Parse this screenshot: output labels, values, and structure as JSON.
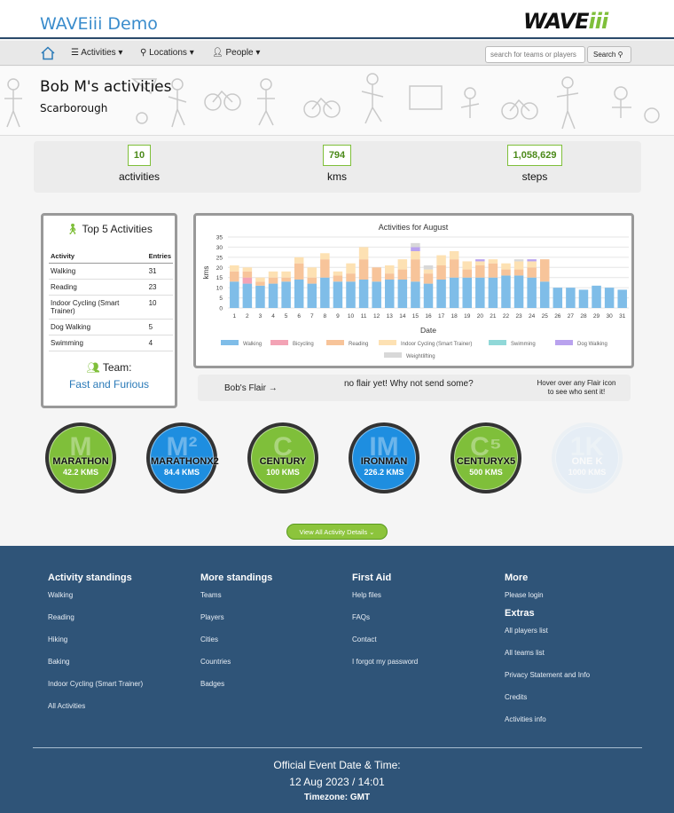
{
  "header": {
    "brand": "WAVEiii Demo",
    "logo_main": "WAVE",
    "logo_accent": "iii"
  },
  "nav": {
    "home_icon": "home-icon",
    "items": [
      {
        "icon": "list-icon",
        "label": "Activities"
      },
      {
        "icon": "map-marker-icon",
        "label": "Locations"
      },
      {
        "icon": "user-icon",
        "label": "People"
      }
    ],
    "search_placeholder": "search for teams or players",
    "search_button": "Search"
  },
  "profile": {
    "title": "Bob M's activities",
    "location": "Scarborough"
  },
  "stats": [
    {
      "value": "10",
      "label": "activities"
    },
    {
      "value": "794",
      "label": "kms"
    },
    {
      "value": "1,058,629",
      "label": "steps"
    }
  ],
  "top5": {
    "title": "Top 5 Activities",
    "col_activity": "Activity",
    "col_entries": "Entries",
    "rows": [
      {
        "activity": "Walking",
        "entries": "31"
      },
      {
        "activity": "Reading",
        "entries": "23"
      },
      {
        "activity": "Indoor Cycling (Smart Trainer)",
        "entries": "10"
      },
      {
        "activity": "Dog Walking",
        "entries": "5"
      },
      {
        "activity": "Swimming",
        "entries": "4"
      }
    ],
    "team_label": "Team:",
    "team_name": "Fast and Furious"
  },
  "chart_data": {
    "type": "bar",
    "stacked": true,
    "title": "Activities for August",
    "xlabel": "Date",
    "ylabel": "kms",
    "ylim": [
      0,
      35
    ],
    "yticks": [
      0,
      5,
      10,
      15,
      20,
      25,
      30,
      35
    ],
    "grid": true,
    "legend": "bottom",
    "categories": [
      "1",
      "2",
      "3",
      "4",
      "5",
      "6",
      "7",
      "8",
      "9",
      "10",
      "11",
      "12",
      "13",
      "14",
      "15",
      "16",
      "17",
      "18",
      "19",
      "20",
      "21",
      "22",
      "23",
      "24",
      "25",
      "26",
      "27",
      "28",
      "29",
      "30",
      "31"
    ],
    "series": [
      {
        "name": "Walking",
        "color": "#7fbde8",
        "values": [
          13,
          12,
          11,
          12,
          13,
          14,
          12,
          15,
          13,
          13,
          14,
          13,
          14,
          14,
          13,
          12,
          14,
          15,
          15,
          15,
          15,
          16,
          16,
          15,
          13,
          10,
          10,
          9,
          11,
          10,
          9
        ]
      },
      {
        "name": "Bicycling",
        "color": "#f3a3b5",
        "values": [
          0,
          3,
          0,
          0,
          0,
          0,
          0,
          0,
          0,
          0,
          0,
          0,
          0,
          0,
          0,
          0,
          0,
          0,
          0,
          0,
          0,
          0,
          0,
          0,
          0,
          0,
          0,
          0,
          0,
          0,
          0
        ]
      },
      {
        "name": "Reading",
        "color": "#f7c49a",
        "values": [
          5,
          3,
          2,
          3,
          2,
          8,
          3,
          9,
          3,
          4,
          10,
          7,
          3,
          5,
          11,
          5,
          7,
          9,
          4,
          6,
          7,
          3,
          3,
          5,
          11,
          0,
          0,
          0,
          0,
          0,
          0
        ]
      },
      {
        "name": "Indoor Cycling (Smart Trainer)",
        "color": "#fde1b3",
        "values": [
          3,
          2,
          2,
          3,
          3,
          3,
          5,
          3,
          2,
          5,
          6,
          0,
          4,
          5,
          4,
          2,
          5,
          4,
          4,
          2,
          2,
          3,
          4,
          3,
          0,
          0,
          0,
          0,
          0,
          0,
          0
        ]
      },
      {
        "name": "Swimming",
        "color": "#90d8d8",
        "values": [
          0,
          0,
          0,
          0,
          0,
          0,
          0,
          0,
          0,
          0,
          0,
          0,
          0,
          0,
          0,
          0,
          0,
          0,
          0,
          0,
          0,
          0,
          0,
          0,
          0,
          0,
          0,
          0,
          0,
          0,
          0
        ]
      },
      {
        "name": "Dog Walking",
        "color": "#b9a2ee",
        "values": [
          0,
          0,
          0,
          0,
          0,
          0,
          0,
          0,
          0,
          0,
          0,
          0,
          0,
          0,
          2,
          0,
          0,
          0,
          0,
          1,
          0,
          0,
          0,
          1,
          0,
          0,
          0,
          0,
          0,
          0,
          0
        ]
      },
      {
        "name": "Weightlifting",
        "color": "#d8d8d8",
        "values": [
          0,
          0,
          0,
          0,
          0,
          0,
          0,
          0,
          0,
          0,
          0,
          0,
          0,
          0,
          2,
          2,
          0,
          0,
          0,
          0,
          0,
          0,
          1,
          0,
          0,
          0,
          0,
          0,
          0,
          0,
          0
        ]
      }
    ]
  },
  "flair": {
    "label": "Bob's Flair →",
    "message": "no flair yet! Why not send some?",
    "hint_line1": "Hover over any Flair icon",
    "hint_line2": "to see who sent it!"
  },
  "badges": [
    {
      "name": "MARATHON",
      "dist": "42.2 KMS",
      "letter": "M",
      "color": "#7fbf3a",
      "ring": "#333",
      "earned": true
    },
    {
      "name": "MARATHONX2",
      "dist": "84.4 KMS",
      "letter": "M²",
      "color": "#1e8ee0",
      "ring": "#333",
      "earned": true
    },
    {
      "name": "CENTURY",
      "dist": "100 KMS",
      "letter": "C",
      "color": "#7fbf3a",
      "ring": "#333",
      "earned": true
    },
    {
      "name": "IRONMAN",
      "dist": "226.2 KMS",
      "letter": "IM",
      "color": "#1e8ee0",
      "ring": "#333",
      "earned": true
    },
    {
      "name": "CENTURYX5",
      "dist": "500 KMS",
      "letter": "C⁵",
      "color": "#7fbf3a",
      "ring": "#333",
      "earned": true
    },
    {
      "name": "ONE K",
      "dist": "1000 KMS",
      "letter": "1K",
      "color": "#d9e8f5",
      "ring": "#e4ecf4",
      "earned": false
    }
  ],
  "view_button": "View All Activity Details",
  "footer": {
    "cols": [
      {
        "head": "Activity standings",
        "links": [
          "Walking",
          "Reading",
          "Hiking",
          "Baking",
          "Indoor Cycling (Smart Trainer)",
          "All Activities"
        ]
      },
      {
        "head": "More standings",
        "links": [
          "Teams",
          "Players",
          "Cities",
          "Countries",
          "Badges"
        ]
      },
      {
        "head": "First Aid",
        "links": [
          "Help files",
          "FAQs",
          "Contact",
          "I forgot my password"
        ]
      },
      {
        "head": "More",
        "links": [
          "Please login"
        ],
        "head2": "Extras",
        "links2": [
          "All players list",
          "All teams list",
          "Privacy Statement and Info",
          "Credits",
          "Activities info"
        ]
      }
    ],
    "event_title": "Official Event Date & Time:",
    "event_date": "12 Aug 2023 / 14:01",
    "timezone": "Timezone: GMT"
  }
}
